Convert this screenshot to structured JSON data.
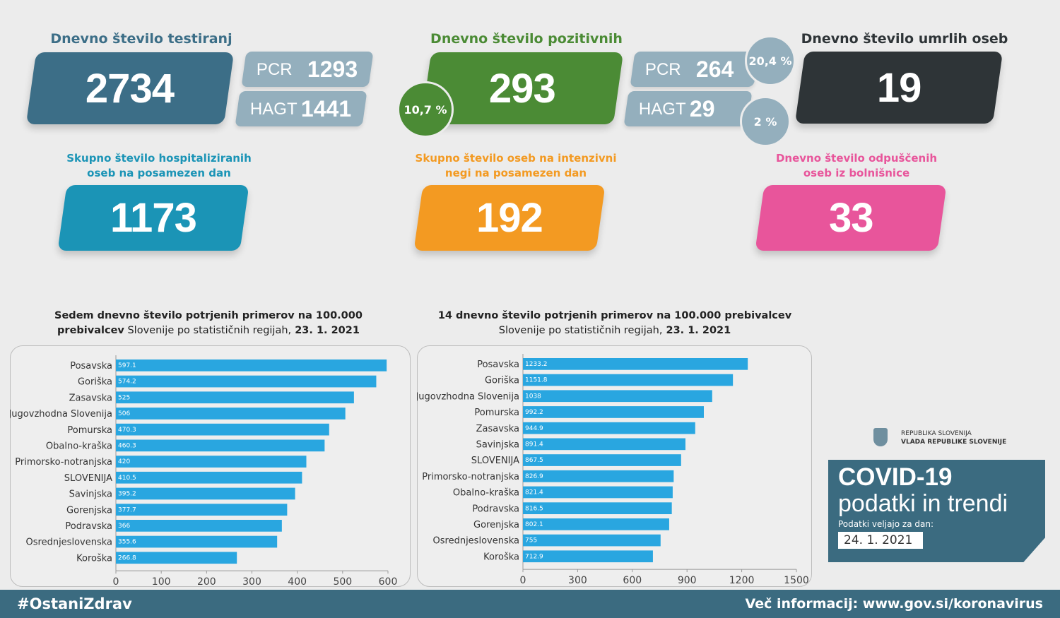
{
  "tests": {
    "title": "Dnevno število testiranj",
    "total": "2734",
    "pcr_label": "PCR",
    "pcr_value": "1293",
    "hagt_label": "HAGT",
    "hagt_value": "1441"
  },
  "positive": {
    "title": "Dnevno število pozitivnih",
    "total": "293",
    "share_total": "10,7 %",
    "pcr_label": "PCR",
    "pcr_value": "264",
    "pcr_share": "20,4 %",
    "hagt_label": "HAGT",
    "hagt_value": "29",
    "hagt_share": "2 %"
  },
  "deaths": {
    "title": "Dnevno število umrlih oseb",
    "total": "19"
  },
  "hospitalized": {
    "title_line1": "Skupno število hospitaliziranih",
    "title_line2": "oseb na posamezen dan",
    "total": "1173"
  },
  "icu": {
    "title_line1": "Skupno število oseb na intenzivni",
    "title_line2": "negi na posamezen dan",
    "total": "192"
  },
  "discharged": {
    "title_line1": "Dnevno število odpuščenih",
    "title_line2": "oseb iz bolnišnice",
    "total": "33"
  },
  "colors": {
    "tests": "#3c6e87",
    "mini": "#94afbd",
    "positive": "#4b8b35",
    "deaths": "#2e3437",
    "hospitalized": "#1b94b6",
    "icu": "#f39a22",
    "discharged": "#e8559b",
    "bar": "#29a6e0",
    "footer": "#3b6b80"
  },
  "chart_data": [
    {
      "type": "bar",
      "orientation": "horizontal",
      "title_line1": "Sedem dnevno število potrjenih primerov na 100.000",
      "title_line2_bold": "prebivalcev",
      "title_line2_normal": " Slovenije po statističnih regijah,",
      "title_line2_date": " 23. 1. 2021",
      "categories": [
        "Posavska",
        "Goriška",
        "Zasavska",
        "Jugovzhodna Slovenija",
        "Pomurska",
        "Obalno-kraška",
        "Primorsko-notranjska",
        "SLOVENIJA",
        "Savinjska",
        "Gorenjska",
        "Podravska",
        "Osrednjeslovenska",
        "Koroška"
      ],
      "values": [
        597.1,
        574.2,
        525,
        506,
        470.3,
        460.3,
        420,
        410.5,
        395.2,
        377.7,
        366,
        355.6,
        266.8
      ],
      "xlim": [
        0,
        600
      ],
      "ticks": [
        0,
        100,
        200,
        300,
        400,
        500,
        600
      ]
    },
    {
      "type": "bar",
      "orientation": "horizontal",
      "title_line1": "14 dnevno število potrjenih primerov na 100.000 prebivalcev",
      "title_line2_bold": "",
      "title_line2_normal": "Slovenije po statističnih regijah,",
      "title_line2_date": " 23. 1. 2021",
      "categories": [
        "Posavska",
        "Goriška",
        "Jugovzhodna Slovenija",
        "Pomurska",
        "Zasavska",
        "Savinjska",
        "SLOVENIJA",
        "Primorsko-notranjska",
        "Obalno-kraška",
        "Podravska",
        "Gorenjska",
        "Osrednjeslovenska",
        "Koroška"
      ],
      "values": [
        1233.2,
        1151.8,
        1038,
        992.2,
        944.9,
        891.4,
        867.5,
        826.9,
        821.4,
        816.5,
        802.1,
        755,
        712.9
      ],
      "xlim": [
        0,
        1500
      ],
      "ticks": [
        0,
        300,
        600,
        900,
        1200,
        1500
      ]
    }
  ],
  "branding": {
    "gov_line1": "REPUBLIKA SLOVENIJA",
    "gov_line2": "VLADA REPUBLIKE SLOVENIJE",
    "headline1": "COVID-19",
    "headline2": "podatki in trendi",
    "valid_label": "Podatki veljajo za dan:",
    "valid_date": "24. 1. 2021"
  },
  "footer": {
    "hashtag": "#OstaniZdrav",
    "more_info": "Več informacij: www.gov.si/koronavirus"
  }
}
